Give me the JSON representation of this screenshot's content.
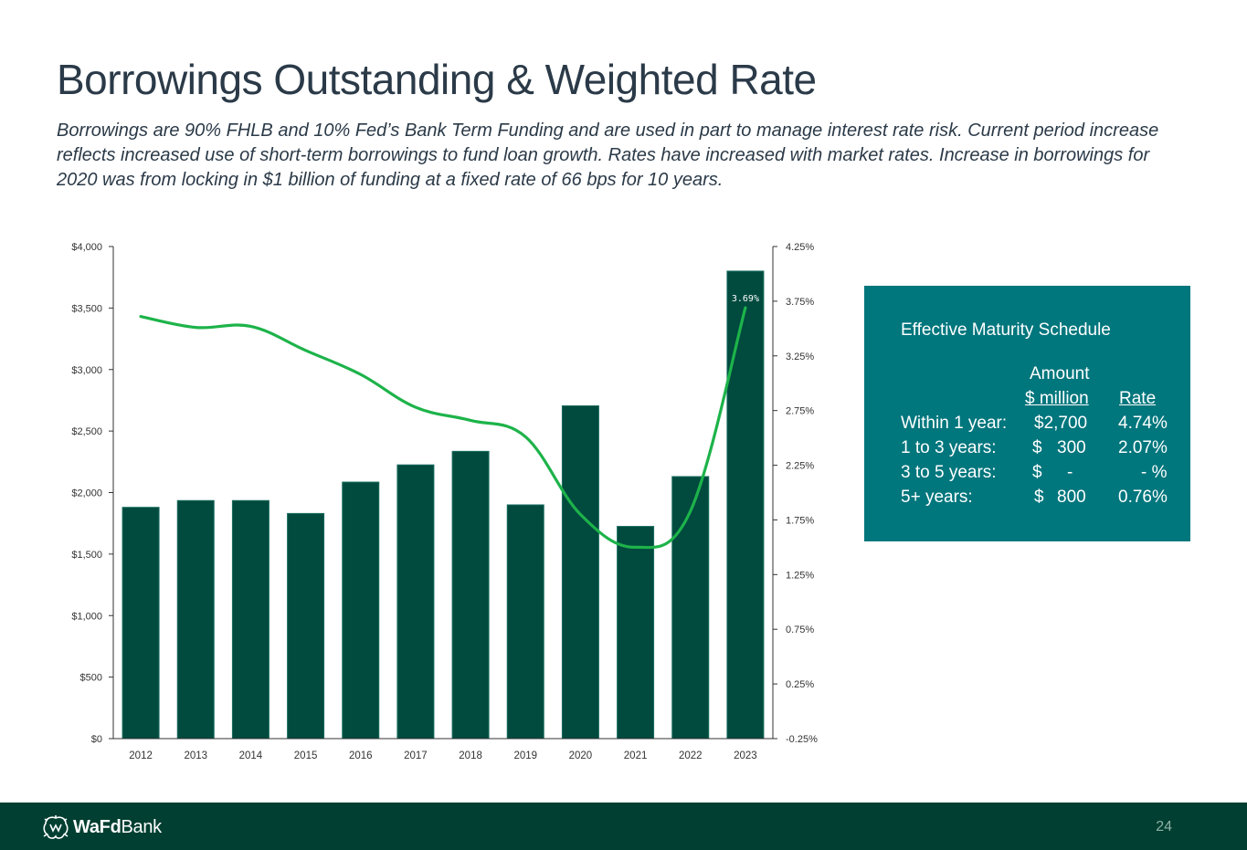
{
  "title": "Borrowings Outstanding & Weighted Rate",
  "subtitle": "Borrowings are 90% FHLB and 10%  Fed’s Bank Term Funding and are used in part to manage interest rate risk.  Current period increase reflects increased use of short-term borrowings to fund loan growth.  Rates have increased with market rates.  Increase in borrowings for 2020 was from locking in $1 billion of funding at a fixed rate of 66 bps for 10 years.",
  "chart_data": {
    "type": "bar",
    "categories": [
      "2012",
      "2013",
      "2014",
      "2015",
      "2016",
      "2017",
      "2018",
      "2019",
      "2020",
      "2021",
      "2022",
      "2023"
    ],
    "series": [
      {
        "name": "Borrowings Outstanding ($ million)",
        "type": "bar",
        "axis": "left",
        "values": [
          1880,
          1935,
          1935,
          1830,
          2085,
          2225,
          2335,
          1900,
          2705,
          1725,
          2130,
          3800
        ]
      },
      {
        "name": "Weighted Rate (%)",
        "type": "line",
        "axis": "right",
        "values": [
          3.61,
          3.51,
          3.52,
          3.3,
          3.08,
          2.78,
          2.66,
          2.51,
          1.8,
          1.5,
          1.83,
          3.69
        ]
      }
    ],
    "y_left": {
      "min": 0,
      "max": 4000,
      "step": 500,
      "tick_labels": [
        "$0",
        "$500",
        "$1,000",
        "$1,500",
        "$2,000",
        "$2,500",
        "$3,000",
        "$3,500",
        "$4,000"
      ]
    },
    "y_right": {
      "min": -0.25,
      "max": 4.25,
      "step": 0.5,
      "tick_labels": [
        "-0.25%",
        "0.25%",
        "0.75%",
        "1.25%",
        "1.75%",
        "2.25%",
        "2.75%",
        "3.25%",
        "3.75%",
        "4.25%"
      ]
    },
    "data_label": {
      "index": 11,
      "text": "3.69%"
    },
    "grid": false,
    "legend": "none",
    "colors": {
      "bar": "#004a3e",
      "bar_edge": "#1a6e60",
      "line": "#1db34a",
      "axis": "#333333",
      "tick_text": "#333333"
    }
  },
  "maturity": {
    "title": "Effective Maturity Schedule",
    "header_amount_line1": "Amount",
    "header_amount_line2": "$ million",
    "header_rate": "Rate",
    "rows": [
      {
        "label": "Within 1 year:",
        "currency": "",
        "amount": "$2,700",
        "rate": "4.74%"
      },
      {
        "label": "1 to 3 years:",
        "currency": "$",
        "amount": "300",
        "rate": "2.07%"
      },
      {
        "label": "3 to 5 years:",
        "currency": "$",
        "amount": "-",
        "rate": "- %"
      },
      {
        "label": "5+ years:",
        "currency": "$",
        "amount": "800",
        "rate": "0.76%"
      }
    ],
    "background": "#00767d"
  },
  "footer": {
    "brand_bold": "WaFd",
    "brand_rest": "Bank",
    "logo_icon": "wafd-logo-icon",
    "page_number": "24"
  }
}
